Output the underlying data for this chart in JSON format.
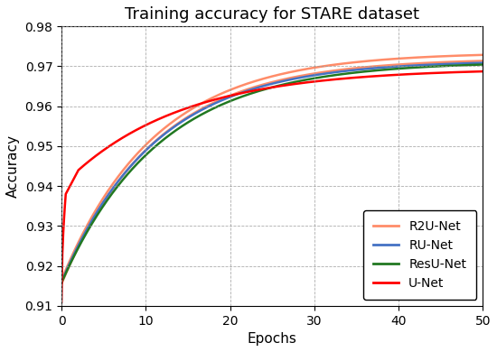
{
  "title": "Training accuracy for STARE dataset",
  "xlabel": "Epochs",
  "ylabel": "Accuracy",
  "xlim": [
    0,
    50
  ],
  "ylim": [
    0.91,
    0.98
  ],
  "xticks": [
    0,
    10,
    20,
    30,
    40,
    50
  ],
  "yticks": [
    0.91,
    0.92,
    0.93,
    0.94,
    0.95,
    0.96,
    0.97,
    0.98
  ],
  "colors": {
    "R2U-Net": "#FF8C69",
    "RU-Net": "#4472C4",
    "ResU-Net": "#217821",
    "U-Net": "#FF0000"
  },
  "background_color": "#ffffff",
  "title_fontsize": 13,
  "label_fontsize": 11,
  "tick_fontsize": 10
}
